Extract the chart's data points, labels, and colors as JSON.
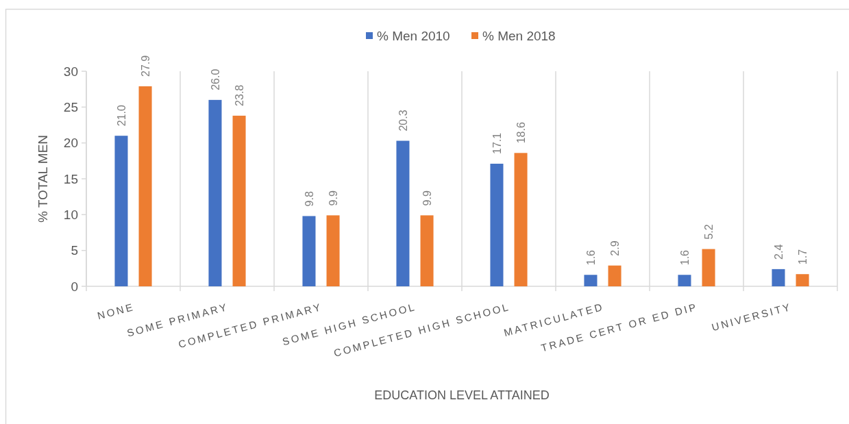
{
  "chart_data": {
    "type": "bar",
    "xlabel": "EDUCATION LEVEL ATTAINED",
    "ylabel": "% TOTAL MEN",
    "categories": [
      "NONE",
      "SOME PRIMARY",
      "COMPLETED PRIMARY",
      "SOME HIGH SCHOOL",
      "COMPLETED HIGH SCHOOL",
      "MATRICULATED",
      "TRADE CERT OR ED DIP",
      "UNIVERSITY"
    ],
    "series": [
      {
        "name": "% Men 2010",
        "color": "#4472c4",
        "values": [
          21.0,
          26.0,
          9.8,
          20.3,
          17.1,
          1.6,
          1.6,
          2.4
        ],
        "value_labels": [
          "21.0",
          "26.0",
          "9.8",
          "20.3",
          "17.1",
          "1.6",
          "1.6",
          "2.4"
        ]
      },
      {
        "name": "% Men 2018",
        "color": "#ed7d31",
        "values": [
          27.9,
          23.8,
          9.9,
          9.9,
          18.6,
          2.9,
          5.2,
          1.7
        ],
        "value_labels": [
          "27.9",
          "23.8",
          "9.9",
          "9.9",
          "18.6",
          "2.9",
          "5.2",
          "1.7"
        ]
      }
    ],
    "ylim": [
      0,
      30
    ],
    "yticks": [
      0,
      5,
      10,
      15,
      20,
      25,
      30
    ],
    "grid": "x",
    "legend": "top"
  }
}
